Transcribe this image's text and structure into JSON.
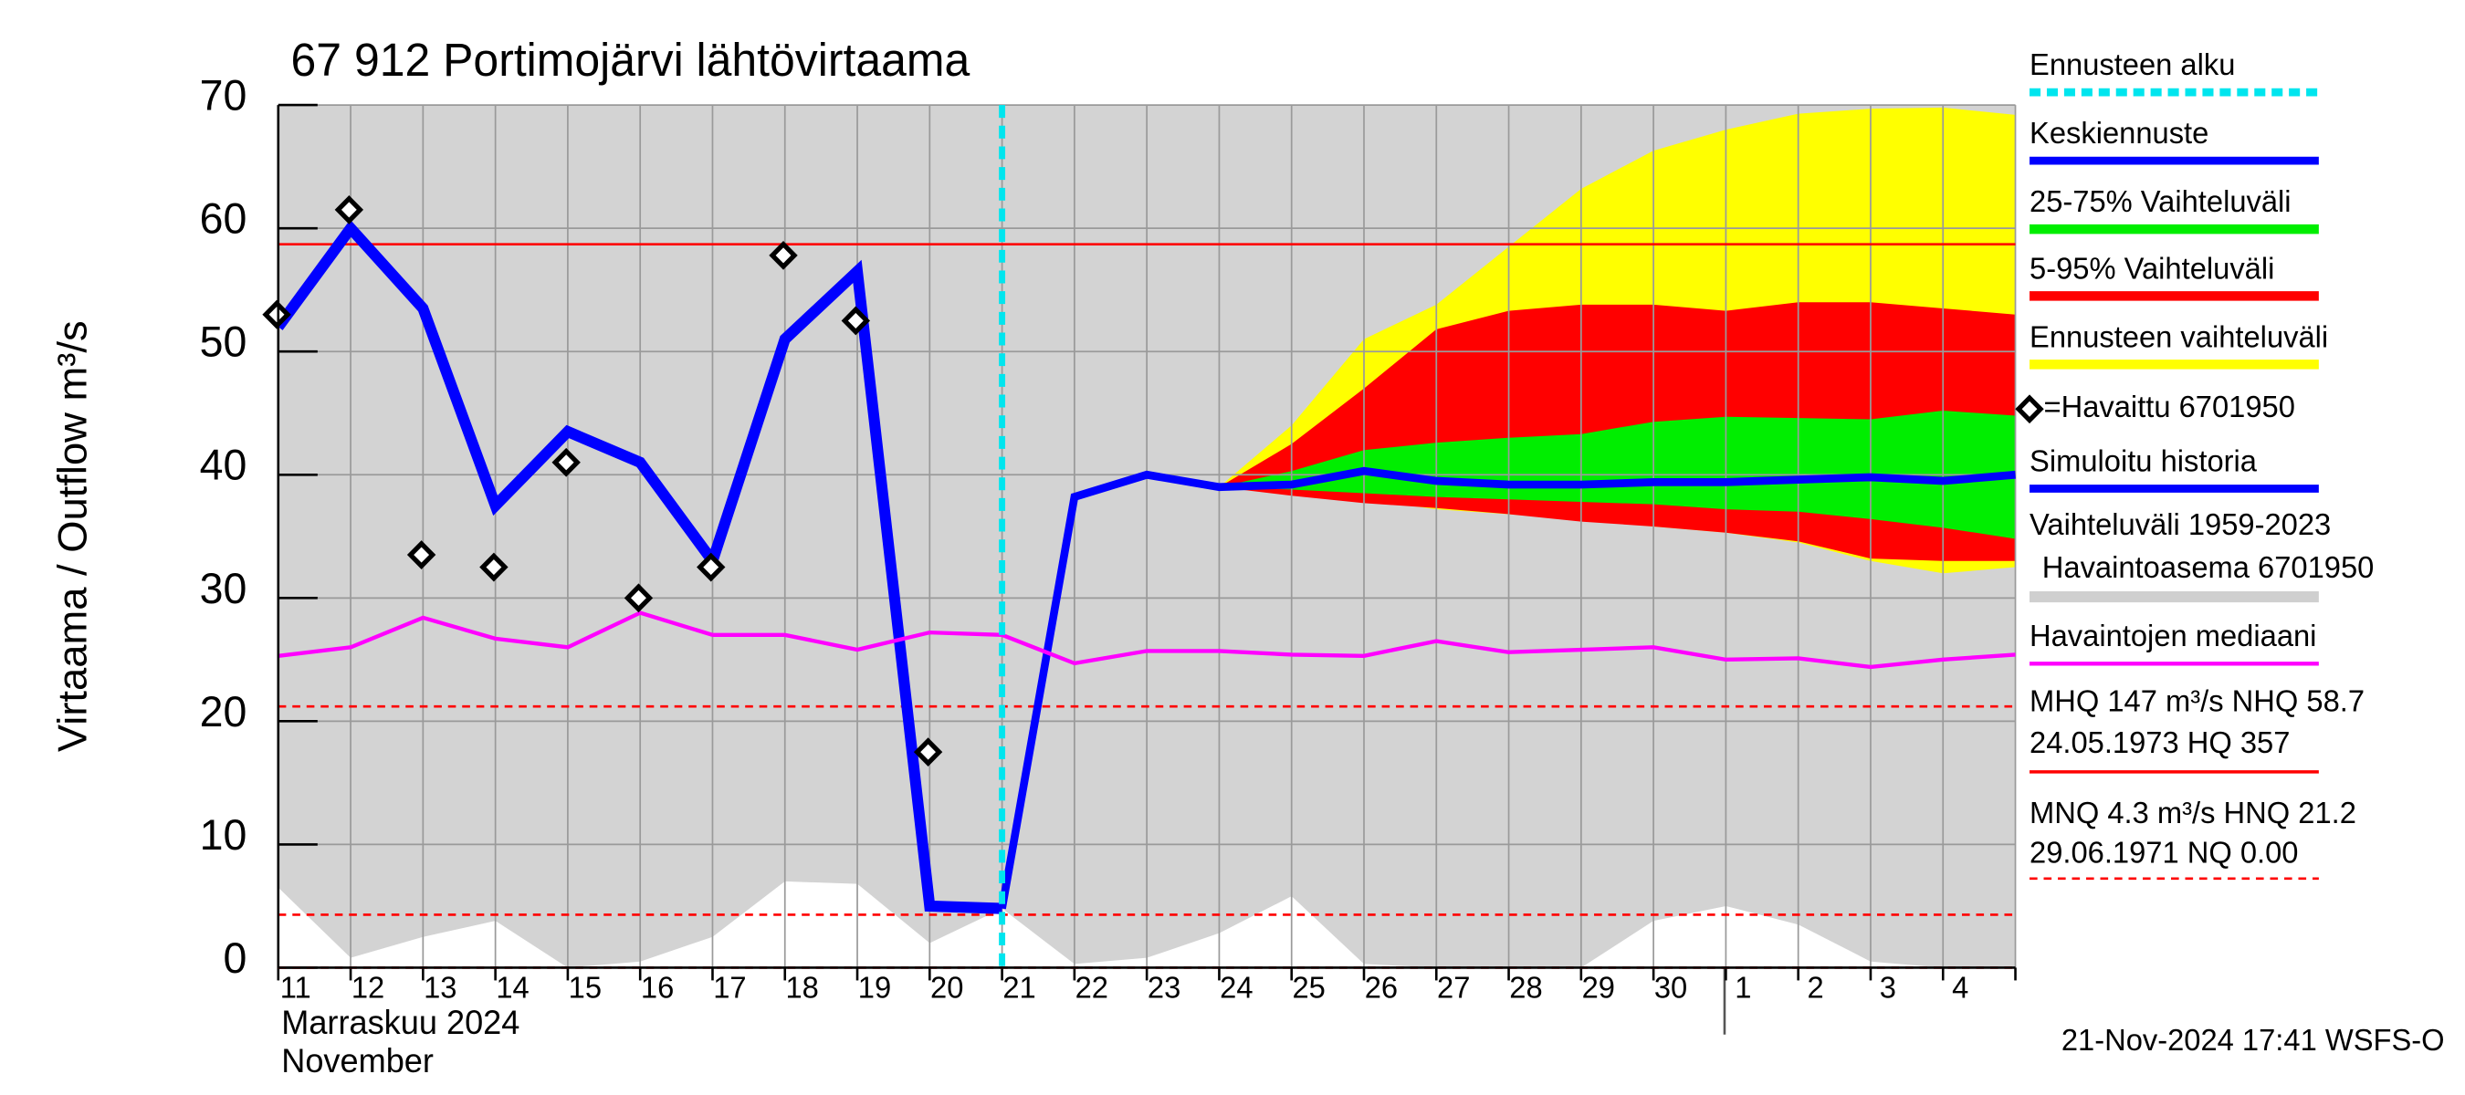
{
  "chart_data": {
    "type": "line",
    "title": "67 912 Portimojärvi lähtövirtaama",
    "ylabel": "Virtaama / Outflow    m³/s",
    "xlabel": [
      "Marraskuu 2024",
      "November"
    ],
    "footer": "21-Nov-2024 17:41 WSFS-O",
    "categories": [
      "11",
      "12",
      "13",
      "14",
      "15",
      "16",
      "17",
      "18",
      "19",
      "20",
      "21",
      "22",
      "23",
      "24",
      "25",
      "26",
      "27",
      "28",
      "29",
      "30",
      "1",
      "2",
      "3",
      "4",
      null
    ],
    "ylim": [
      0,
      70
    ],
    "yticks": [
      0,
      10,
      20,
      30,
      40,
      50,
      60,
      70
    ],
    "grid": true,
    "forecast_start": {
      "category": "21",
      "name": "Ennusteen alku",
      "color": "#00e5ee"
    },
    "bands": [
      {
        "name": [
          "Vaihteluväli 1959-2023",
          "Havaintoasema 6701950"
        ],
        "color": "#d3d3d3",
        "low": [
          6.5,
          0.8,
          2.5,
          3.8,
          0,
          0.5,
          2.5,
          7,
          6.8,
          2,
          4.8,
          0.3,
          0.8,
          2.8,
          5.8,
          0.3,
          0,
          0,
          0,
          3.8,
          5,
          3.5,
          0.5,
          0,
          0
        ],
        "high": [
          70,
          70,
          70,
          70,
          70,
          70,
          70,
          70,
          70,
          70,
          70,
          70,
          70,
          70,
          70,
          70,
          70,
          70,
          70,
          70,
          70,
          70,
          70,
          70,
          70
        ]
      },
      {
        "name": "Ennusteen vaihteluväli",
        "color": "#ffff00",
        "low": [
          null,
          null,
          null,
          null,
          null,
          null,
          null,
          null,
          null,
          null,
          null,
          null,
          null,
          39,
          38.5,
          38,
          37.2,
          36.8,
          36.3,
          35.8,
          35.3,
          34.5,
          33,
          32,
          32.5
        ],
        "high": [
          null,
          null,
          null,
          null,
          null,
          null,
          null,
          null,
          null,
          null,
          null,
          null,
          null,
          39,
          44,
          51,
          53.8,
          58.5,
          63.2,
          66.3,
          68,
          69.3,
          69.7,
          69.8,
          69.2
        ]
      },
      {
        "name": "5-95% Vaihteluväli",
        "color": "#ff0000",
        "low": [
          null,
          null,
          null,
          null,
          null,
          null,
          null,
          null,
          null,
          null,
          null,
          null,
          null,
          39,
          38.3,
          37.7,
          37.3,
          36.8,
          36.2,
          35.8,
          35.3,
          34.6,
          33.2,
          33,
          33
        ],
        "high": [
          null,
          null,
          null,
          null,
          null,
          null,
          null,
          null,
          null,
          null,
          null,
          null,
          null,
          39,
          42.5,
          47,
          51.8,
          53.3,
          53.8,
          53.8,
          53.3,
          54,
          54,
          53.5,
          53
        ]
      },
      {
        "name": "25-75% Vaihteluväli",
        "color": "#00ee00",
        "low": [
          null,
          null,
          null,
          null,
          null,
          null,
          null,
          null,
          null,
          null,
          null,
          null,
          null,
          39,
          38.8,
          38.5,
          38.2,
          38,
          37.8,
          37.6,
          37.2,
          37,
          36.4,
          35.7,
          34.8
        ],
        "high": [
          null,
          null,
          null,
          null,
          null,
          null,
          null,
          null,
          null,
          null,
          null,
          null,
          null,
          39,
          40.3,
          42,
          42.6,
          43,
          43.3,
          44.3,
          44.7,
          44.6,
          44.5,
          45.2,
          44.8
        ]
      }
    ],
    "series": [
      {
        "name": "Keskiennuste",
        "color": "#0000ff",
        "values": [
          null,
          null,
          null,
          null,
          null,
          null,
          null,
          null,
          null,
          null,
          4.8,
          38.2,
          40,
          39,
          39.2,
          40.3,
          39.5,
          39.2,
          39.2,
          39.4,
          39.4,
          39.6,
          39.8,
          39.5,
          40
        ]
      },
      {
        "name": "Simuloitu historia",
        "color": "#0000ff",
        "values": [
          52,
          60,
          53.5,
          37.5,
          43.5,
          41,
          33,
          51,
          56.5,
          5,
          4.8,
          null,
          null,
          null,
          null,
          null,
          null,
          null,
          null,
          null,
          null,
          null,
          null,
          null,
          null
        ]
      },
      {
        "name": "Havaintojen mediaani",
        "color": "#ff00ff",
        "values": [
          25.3,
          26,
          28.4,
          26.7,
          26,
          28.8,
          27,
          27,
          25.8,
          27.2,
          27,
          24.7,
          25.7,
          25.7,
          25.4,
          25.3,
          26.5,
          25.6,
          25.8,
          26,
          25,
          25.1,
          24.4,
          25,
          25.4
        ]
      },
      {
        "name": "=Havaittu 6701950",
        "color": "#000000",
        "marker": "diamond",
        "values": [
          53,
          61.5,
          33.5,
          32.5,
          41,
          30,
          32.5,
          57.8,
          52.5,
          17.5,
          null,
          null,
          null,
          null,
          null,
          null,
          null,
          null,
          null,
          null,
          null,
          null,
          null,
          null,
          null
        ]
      }
    ],
    "reference_lines": [
      {
        "value": 58.7,
        "color": "#ff0000",
        "dashed": false,
        "labels": [
          "MHQ  147 m³/s NHQ 58.7",
          "24.05.1973 HQ  357"
        ]
      },
      {
        "value": 21.2,
        "color": "#ff0000",
        "dashed": true,
        "labels": [
          "MNQ  4.3 m³/s HNQ 21.2",
          "29.06.1971 NQ 0.00"
        ]
      },
      {
        "value": 4.3,
        "color": "#ff0000",
        "dashed": true
      },
      {
        "value": 0,
        "color": "#ff0000",
        "dashed": true
      }
    ]
  }
}
